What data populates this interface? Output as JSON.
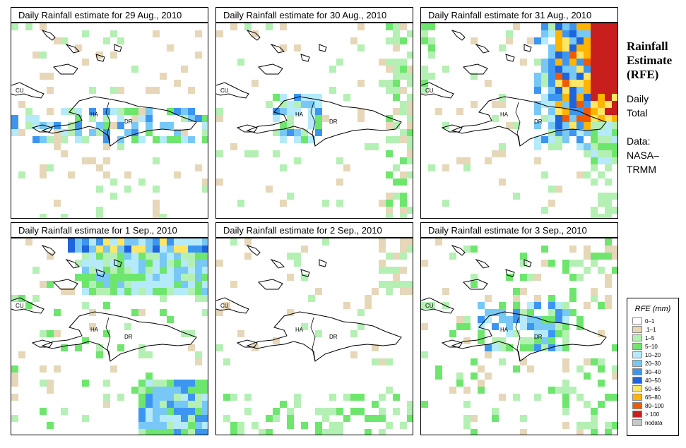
{
  "panels": [
    {
      "title": "Daily Rainfall estimate for  29 Aug., 2010"
    },
    {
      "title": "Daily Rainfall estimate for  30 Aug., 2010"
    },
    {
      "title": "Daily Rainfall estimate for  31 Aug., 2010"
    },
    {
      "title": "Daily Rainfall estimate for  1 Sep., 2010"
    },
    {
      "title": "Daily Rainfall estimate for  2 Sep., 2010"
    },
    {
      "title": "Daily Rainfall estimate for  3 Sep., 2010"
    }
  ],
  "map_labels": {
    "cuba": "CU",
    "haiti": "HA",
    "dominican_republic": "DR"
  },
  "side": {
    "title_line1": "Rainfall",
    "title_line2": "Estimate",
    "title_line3": "(RFE)",
    "desc_line1": "Daily",
    "desc_line2": "Total",
    "data_line1": "Data:",
    "data_line2": "NASA–",
    "data_line3": "TRMM"
  },
  "legend": {
    "title": "RFE (mm)",
    "items": [
      {
        "label": "0–1",
        "color": "#ffffff"
      },
      {
        "label": ".1–1",
        "color": "#e6d7b8"
      },
      {
        "label": "1–5",
        "color": "#b4f0b4"
      },
      {
        "label": "5–10",
        "color": "#6ee66e"
      },
      {
        "label": "10–20",
        "color": "#b4eafa"
      },
      {
        "label": "20–30",
        "color": "#78c8f5"
      },
      {
        "label": "30–40",
        "color": "#3c96f0"
      },
      {
        "label": "40–50",
        "color": "#1e64dc"
      },
      {
        "label": "50–65",
        "color": "#ffe664"
      },
      {
        "label": "65–80",
        "color": "#ffb400"
      },
      {
        "label": "80–100",
        "color": "#f05a00"
      },
      {
        "label": "> 100",
        "color": "#c81e1e"
      },
      {
        "label": "nodata",
        "color": "#c8c8c8"
      }
    ]
  }
}
